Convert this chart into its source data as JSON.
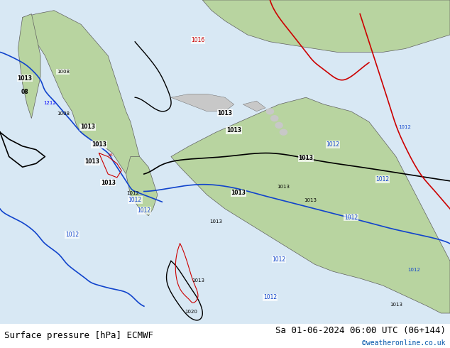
{
  "title_left": "Surface pressure [hPa] ECMWF",
  "title_right": "Sa 01-06-2024 06:00 UTC (06+144)",
  "copyright": "©weatheronline.co.uk",
  "bg_color": "#d8e8f0",
  "land_color": "#b8d4a0",
  "border_color": "#808080",
  "font_size_title": 9,
  "font_size_label": 7.5,
  "contour_colors": {
    "black": "#000000",
    "blue": "#0000cc",
    "red": "#cc0000"
  },
  "figsize": [
    6.34,
    4.9
  ],
  "dpi": 100
}
